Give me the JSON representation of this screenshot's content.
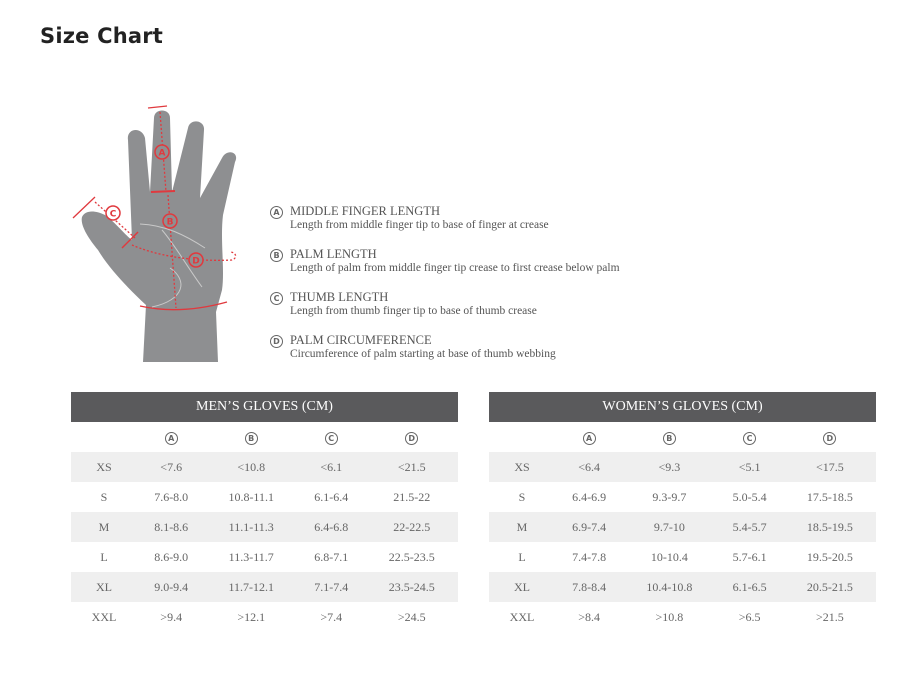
{
  "title": "Size Chart",
  "colors": {
    "header_bg": "#5a5a5c",
    "accent_red": "#e0393e",
    "hand_gray": "#8e8f91",
    "row_alt": "#efefef"
  },
  "diagram_labels": [
    "A",
    "B",
    "C",
    "D"
  ],
  "legend": [
    {
      "letter": "A",
      "title": "MIDDLE FINGER LENGTH",
      "desc": "Length from middle finger tip to base of finger at crease"
    },
    {
      "letter": "B",
      "title": "PALM LENGTH",
      "desc": "Length of palm from middle finger tip crease to first crease below palm"
    },
    {
      "letter": "C",
      "title": "THUMB LENGTH",
      "desc": "Length from thumb finger tip to base of thumb crease"
    },
    {
      "letter": "D",
      "title": "PALM CIRCUMFERENCE",
      "desc": "Circumference of palm starting at base of thumb webbing"
    }
  ],
  "tables": [
    {
      "title": "MEN’S GLOVES (CM)",
      "columns": [
        "A",
        "B",
        "C",
        "D"
      ],
      "rows": [
        [
          "XS",
          "<7.6",
          "<10.8",
          "<6.1",
          "<21.5"
        ],
        [
          "S",
          "7.6-8.0",
          "10.8-11.1",
          "6.1-6.4",
          "21.5-22"
        ],
        [
          "M",
          "8.1-8.6",
          "11.1-11.3",
          "6.4-6.8",
          "22-22.5"
        ],
        [
          "L",
          "8.6-9.0",
          "11.3-11.7",
          "6.8-7.1",
          "22.5-23.5"
        ],
        [
          "XL",
          "9.0-9.4",
          "11.7-12.1",
          "7.1-7.4",
          "23.5-24.5"
        ],
        [
          "XXL",
          ">9.4",
          ">12.1",
          ">7.4",
          ">24.5"
        ]
      ]
    },
    {
      "title": "WOMEN’S GLOVES (CM)",
      "columns": [
        "A",
        "B",
        "C",
        "D"
      ],
      "rows": [
        [
          "XS",
          "<6.4",
          "<9.3",
          "<5.1",
          "<17.5"
        ],
        [
          "S",
          "6.4-6.9",
          "9.3-9.7",
          "5.0-5.4",
          "17.5-18.5"
        ],
        [
          "M",
          "6.9-7.4",
          "9.7-10",
          "5.4-5.7",
          "18.5-19.5"
        ],
        [
          "L",
          "7.4-7.8",
          "10-10.4",
          "5.7-6.1",
          "19.5-20.5"
        ],
        [
          "XL",
          "7.8-8.4",
          "10.4-10.8",
          "6.1-6.5",
          "20.5-21.5"
        ],
        [
          "XXL",
          ">8.4",
          ">10.8",
          ">6.5",
          ">21.5"
        ]
      ]
    }
  ]
}
